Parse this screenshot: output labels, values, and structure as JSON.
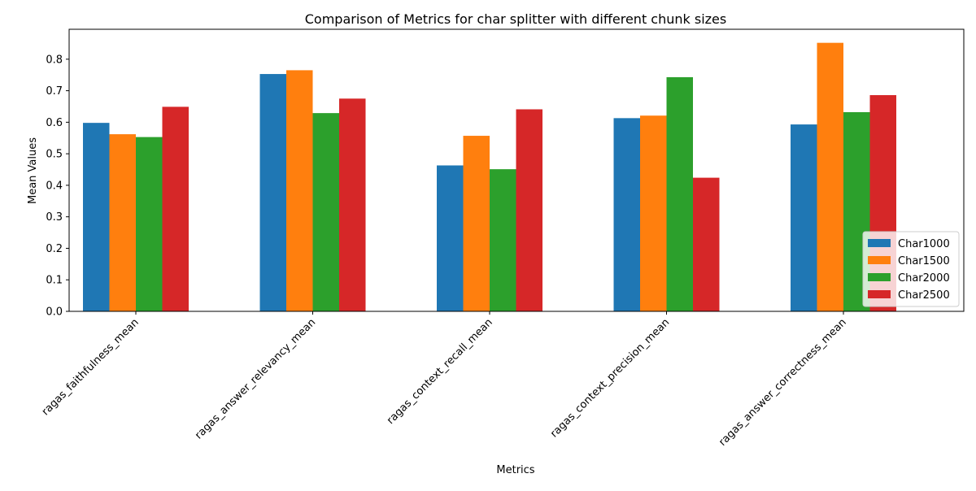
{
  "chart_data": {
    "type": "bar",
    "title": "Comparison of Metrics for char splitter with different chunk sizes",
    "xlabel": "Metrics",
    "ylabel": "Mean Values",
    "categories": [
      "ragas_faithfulness_mean",
      "ragas_answer_relevancy_mean",
      "ragas_context_recall_mean",
      "ragas_context_precision_mean",
      "ragas_answer_correctness_mean"
    ],
    "series": [
      {
        "name": "Char1000",
        "color": "#1f77b4",
        "values": [
          0.598,
          0.753,
          0.463,
          0.613,
          0.593
        ]
      },
      {
        "name": "Char1500",
        "color": "#ff7f0e",
        "values": [
          0.562,
          0.765,
          0.557,
          0.621,
          0.852
        ]
      },
      {
        "name": "Char2000",
        "color": "#2ca02c",
        "values": [
          0.553,
          0.629,
          0.451,
          0.743,
          0.632
        ]
      },
      {
        "name": "Char2500",
        "color": "#d62728",
        "values": [
          0.649,
          0.675,
          0.641,
          0.424,
          0.686
        ]
      }
    ],
    "ylim": [
      0,
      0.895
    ],
    "yticks": [
      "0.0",
      "0.1",
      "0.2",
      "0.3",
      "0.4",
      "0.5",
      "0.6",
      "0.7",
      "0.8"
    ],
    "grid": false,
    "legend_position": "lower-right"
  }
}
